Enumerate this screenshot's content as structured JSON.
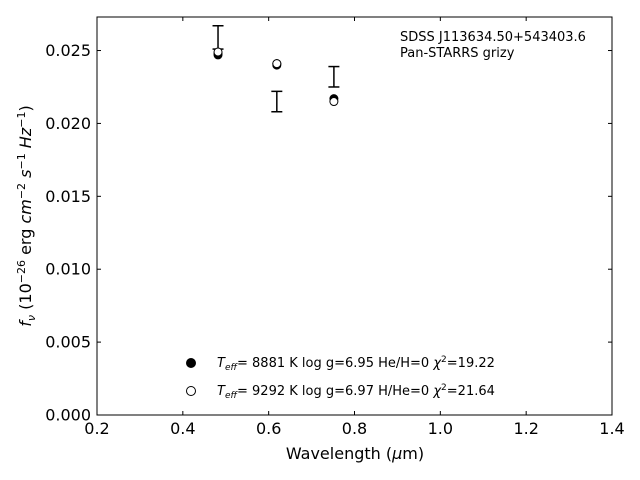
{
  "chart_data": {
    "type": "scatter",
    "title": "",
    "xlabel": "Wavelength (μm)",
    "ylabel": "f_ν (10^-26 erg cm^-2 s^-1 Hz^-1)",
    "xlim": [
      0.2,
      1.4
    ],
    "ylim": [
      0.0,
      0.0273
    ],
    "x_ticks": [
      0.2,
      0.4,
      0.6,
      0.8,
      1.0,
      1.2,
      1.4
    ],
    "x_tick_labels": [
      "0.2",
      "0.4",
      "0.6",
      "0.8",
      "1.0",
      "1.2",
      "1.4"
    ],
    "y_ticks": [
      0.0,
      0.005,
      0.01,
      0.015,
      0.02,
      0.025
    ],
    "y_tick_labels": [
      "0.000",
      "0.005",
      "0.010",
      "0.015",
      "0.020",
      "0.025"
    ],
    "grid": false,
    "annotation_lines": [
      "SDSS J113634.50+543403.6",
      "Pan-STARRS grizy"
    ],
    "observed": {
      "x": [
        0.482,
        0.619,
        0.752
      ],
      "y": [
        0.0259,
        0.0215,
        0.0232
      ],
      "yerr_low": [
        0.0008,
        0.0007,
        0.0007
      ],
      "yerr_high": [
        0.0008,
        0.0007,
        0.0007
      ]
    },
    "series": [
      {
        "name": "Teff= 8881 K log g=6.95 He/H=0 χ2=19.22",
        "marker": "filled-circle",
        "x": [
          0.482,
          0.482,
          0.619,
          0.619,
          0.752
        ],
        "y": [
          0.0248,
          0.0247,
          0.0241,
          0.024,
          0.0217
        ]
      },
      {
        "name": "Teff= 9292 K log g=6.97 H/He=0 χ2=21.64",
        "marker": "open-circle",
        "x": [
          0.482,
          0.619,
          0.752
        ],
        "y": [
          0.0249,
          0.0241,
          0.0215
        ]
      }
    ],
    "legend_placement": "lower-center",
    "legend": [
      {
        "teff": "8881 K",
        "logg": "log g=6.95",
        "comp": "He/H=0",
        "chi2": "=19.22"
      },
      {
        "teff": "9292 K",
        "logg": "log g=6.97",
        "comp": "H/He=0",
        "chi2": "=21.64"
      }
    ]
  }
}
